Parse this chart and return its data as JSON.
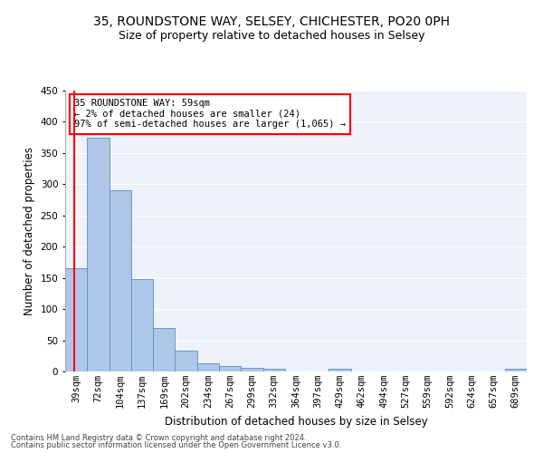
{
  "title1": "35, ROUNDSTONE WAY, SELSEY, CHICHESTER, PO20 0PH",
  "title2": "Size of property relative to detached houses in Selsey",
  "xlabel": "Distribution of detached houses by size in Selsey",
  "ylabel": "Number of detached properties",
  "footer1": "Contains HM Land Registry data © Crown copyright and database right 2024.",
  "footer2": "Contains public sector information licensed under the Open Government Licence v3.0.",
  "annotation_line1": "35 ROUNDSTONE WAY: 59sqm",
  "annotation_line2": "← 2% of detached houses are smaller (24)",
  "annotation_line3": "97% of semi-detached houses are larger (1,065) →",
  "bin_labels": [
    "39sqm",
    "72sqm",
    "104sqm",
    "137sqm",
    "169sqm",
    "202sqm",
    "234sqm",
    "267sqm",
    "299sqm",
    "332sqm",
    "364sqm",
    "397sqm",
    "429sqm",
    "462sqm",
    "494sqm",
    "527sqm",
    "559sqm",
    "592sqm",
    "624sqm",
    "657sqm",
    "689sqm"
  ],
  "bin_values": [
    165,
    375,
    290,
    148,
    69,
    33,
    13,
    8,
    6,
    5,
    0,
    0,
    5,
    0,
    0,
    0,
    0,
    0,
    0,
    0,
    5
  ],
  "bar_color": "#aec6e8",
  "bar_edge_color": "#5a8fc2",
  "property_line_color": "red",
  "background_color": "#eef2fb",
  "ylim": [
    0,
    450
  ],
  "yticks": [
    0,
    50,
    100,
    150,
    200,
    250,
    300,
    350,
    400,
    450
  ],
  "title1_fontsize": 10,
  "title2_fontsize": 9,
  "xlabel_fontsize": 8.5,
  "ylabel_fontsize": 8.5,
  "tick_fontsize": 7.5,
  "footer_fontsize": 6,
  "ann_fontsize": 7.5
}
